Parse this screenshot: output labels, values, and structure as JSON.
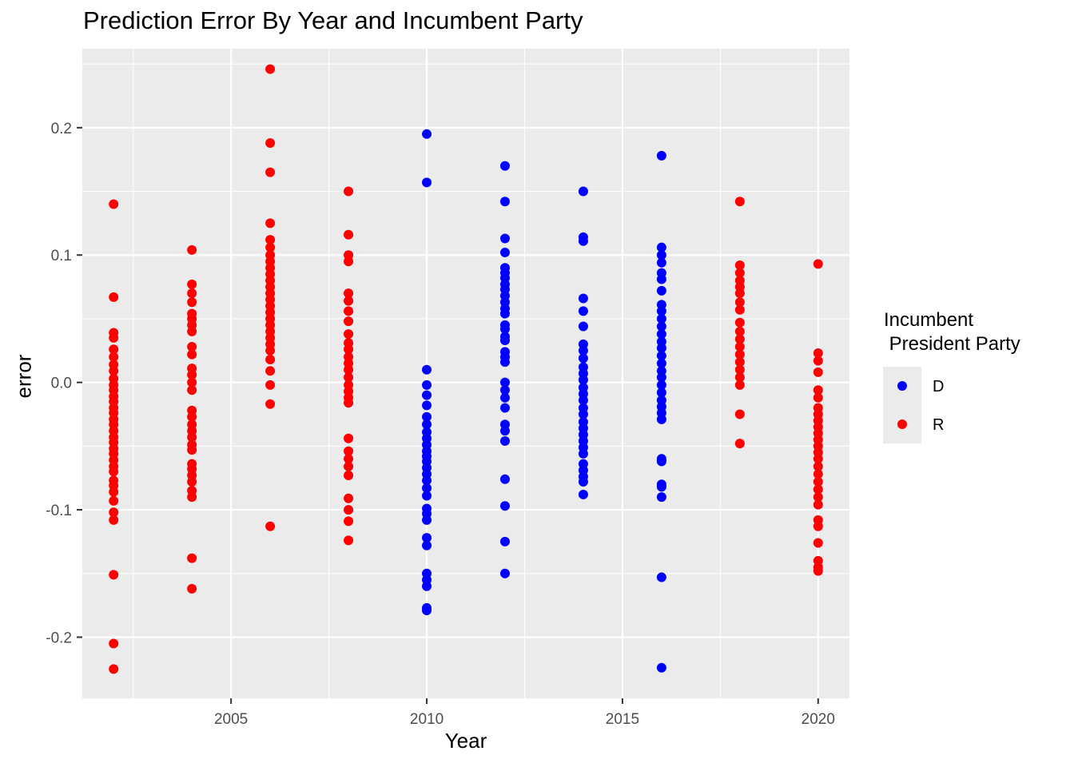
{
  "chart_data": {
    "type": "scatter",
    "title": "Prediction Error By Year and Incumbent Party",
    "xlabel": "Year",
    "ylabel": "error",
    "xlim": [
      2001.2,
      2020.8
    ],
    "ylim": [
      -0.248,
      0.262
    ],
    "x_ticks": [
      2005,
      2010,
      2015,
      2020
    ],
    "x_tick_labels": [
      "2005",
      "2010",
      "2015",
      "2020"
    ],
    "y_ticks": [
      -0.2,
      -0.1,
      0.0,
      0.1,
      0.2
    ],
    "y_tick_labels": [
      "-0.2",
      "-0.1",
      "0.0",
      "0.1",
      "0.2"
    ],
    "grid": true,
    "legend": {
      "title": "Incumbent\n President Party",
      "placement": "right",
      "entries": [
        {
          "label": "D",
          "color": "#0000ff"
        },
        {
          "label": "R",
          "color": "#ff0000"
        }
      ]
    },
    "series": [
      {
        "name": "R",
        "color": "#ff0000",
        "points": [
          [
            2002,
            0.14
          ],
          [
            2002,
            0.067
          ],
          [
            2002,
            0.039
          ],
          [
            2002,
            0.035
          ],
          [
            2002,
            0.026
          ],
          [
            2002,
            0.02
          ],
          [
            2002,
            0.014
          ],
          [
            2002,
            0.009
          ],
          [
            2002,
            0.003
          ],
          [
            2002,
            -0.002
          ],
          [
            2002,
            -0.006
          ],
          [
            2002,
            -0.011
          ],
          [
            2002,
            -0.015
          ],
          [
            2002,
            -0.02
          ],
          [
            2002,
            -0.024
          ],
          [
            2002,
            -0.029
          ],
          [
            2002,
            -0.033
          ],
          [
            2002,
            -0.038
          ],
          [
            2002,
            -0.043
          ],
          [
            2002,
            -0.047
          ],
          [
            2002,
            -0.052
          ],
          [
            2002,
            -0.056
          ],
          [
            2002,
            -0.061
          ],
          [
            2002,
            -0.066
          ],
          [
            2002,
            -0.07
          ],
          [
            2002,
            -0.077
          ],
          [
            2002,
            -0.081
          ],
          [
            2002,
            -0.086
          ],
          [
            2002,
            -0.093
          ],
          [
            2002,
            -0.102
          ],
          [
            2002,
            -0.108
          ],
          [
            2002,
            -0.151
          ],
          [
            2002,
            -0.205
          ],
          [
            2002,
            -0.225
          ],
          [
            2004,
            0.104
          ],
          [
            2004,
            0.077
          ],
          [
            2004,
            0.07
          ],
          [
            2004,
            0.063
          ],
          [
            2004,
            0.054
          ],
          [
            2004,
            0.05
          ],
          [
            2004,
            0.045
          ],
          [
            2004,
            0.04
          ],
          [
            2004,
            0.028
          ],
          [
            2004,
            0.022
          ],
          [
            2004,
            0.011
          ],
          [
            2004,
            0.006
          ],
          [
            2004,
            0.0
          ],
          [
            2004,
            -0.006
          ],
          [
            2004,
            -0.022
          ],
          [
            2004,
            -0.027
          ],
          [
            2004,
            -0.033
          ],
          [
            2004,
            -0.038
          ],
          [
            2004,
            -0.043
          ],
          [
            2004,
            -0.049
          ],
          [
            2004,
            -0.053
          ],
          [
            2004,
            -0.064
          ],
          [
            2004,
            -0.068
          ],
          [
            2004,
            -0.073
          ],
          [
            2004,
            -0.078
          ],
          [
            2004,
            -0.085
          ],
          [
            2004,
            -0.09
          ],
          [
            2004,
            -0.138
          ],
          [
            2004,
            -0.162
          ],
          [
            2006,
            0.246
          ],
          [
            2006,
            0.188
          ],
          [
            2006,
            0.165
          ],
          [
            2006,
            0.125
          ],
          [
            2006,
            0.112
          ],
          [
            2006,
            0.106
          ],
          [
            2006,
            0.1
          ],
          [
            2006,
            0.095
          ],
          [
            2006,
            0.09
          ],
          [
            2006,
            0.085
          ],
          [
            2006,
            0.08
          ],
          [
            2006,
            0.075
          ],
          [
            2006,
            0.07
          ],
          [
            2006,
            0.065
          ],
          [
            2006,
            0.06
          ],
          [
            2006,
            0.055
          ],
          [
            2006,
            0.05
          ],
          [
            2006,
            0.045
          ],
          [
            2006,
            0.04
          ],
          [
            2006,
            0.035
          ],
          [
            2006,
            0.03
          ],
          [
            2006,
            0.025
          ],
          [
            2006,
            0.018
          ],
          [
            2006,
            0.009
          ],
          [
            2006,
            -0.002
          ],
          [
            2006,
            -0.017
          ],
          [
            2006,
            -0.113
          ],
          [
            2008,
            0.15
          ],
          [
            2008,
            0.116
          ],
          [
            2008,
            0.1
          ],
          [
            2008,
            0.095
          ],
          [
            2008,
            0.07
          ],
          [
            2008,
            0.064
          ],
          [
            2008,
            0.056
          ],
          [
            2008,
            0.048
          ],
          [
            2008,
            0.038
          ],
          [
            2008,
            0.031
          ],
          [
            2008,
            0.026
          ],
          [
            2008,
            0.02
          ],
          [
            2008,
            0.015
          ],
          [
            2008,
            0.01
          ],
          [
            2008,
            0.004
          ],
          [
            2008,
            -0.002
          ],
          [
            2008,
            -0.007
          ],
          [
            2008,
            -0.012
          ],
          [
            2008,
            -0.016
          ],
          [
            2008,
            -0.044
          ],
          [
            2008,
            -0.054
          ],
          [
            2008,
            -0.06
          ],
          [
            2008,
            -0.066
          ],
          [
            2008,
            -0.073
          ],
          [
            2008,
            -0.091
          ],
          [
            2008,
            -0.1
          ],
          [
            2008,
            -0.109
          ],
          [
            2008,
            -0.124
          ],
          [
            2018,
            0.142
          ],
          [
            2018,
            0.092
          ],
          [
            2018,
            0.086
          ],
          [
            2018,
            0.08
          ],
          [
            2018,
            0.075
          ],
          [
            2018,
            0.07
          ],
          [
            2018,
            0.063
          ],
          [
            2018,
            0.057
          ],
          [
            2018,
            0.047
          ],
          [
            2018,
            0.04
          ],
          [
            2018,
            0.034
          ],
          [
            2018,
            0.028
          ],
          [
            2018,
            0.022
          ],
          [
            2018,
            0.016
          ],
          [
            2018,
            0.01
          ],
          [
            2018,
            0.004
          ],
          [
            2018,
            -0.002
          ],
          [
            2018,
            -0.025
          ],
          [
            2018,
            -0.048
          ],
          [
            2020,
            0.093
          ],
          [
            2020,
            0.023
          ],
          [
            2020,
            0.017
          ],
          [
            2020,
            0.008
          ],
          [
            2020,
            -0.006
          ],
          [
            2020,
            -0.012
          ],
          [
            2020,
            -0.02
          ],
          [
            2020,
            -0.025
          ],
          [
            2020,
            -0.03
          ],
          [
            2020,
            -0.035
          ],
          [
            2020,
            -0.04
          ],
          [
            2020,
            -0.045
          ],
          [
            2020,
            -0.05
          ],
          [
            2020,
            -0.055
          ],
          [
            2020,
            -0.06
          ],
          [
            2020,
            -0.066
          ],
          [
            2020,
            -0.072
          ],
          [
            2020,
            -0.078
          ],
          [
            2020,
            -0.084
          ],
          [
            2020,
            -0.09
          ],
          [
            2020,
            -0.096
          ],
          [
            2020,
            -0.108
          ],
          [
            2020,
            -0.113
          ],
          [
            2020,
            -0.126
          ],
          [
            2020,
            -0.14
          ],
          [
            2020,
            -0.145
          ],
          [
            2020,
            -0.148
          ]
        ]
      },
      {
        "name": "D",
        "color": "#0000ff",
        "points": [
          [
            2010,
            0.195
          ],
          [
            2010,
            0.157
          ],
          [
            2010,
            0.01
          ],
          [
            2010,
            -0.002
          ],
          [
            2010,
            -0.01
          ],
          [
            2010,
            -0.018
          ],
          [
            2010,
            -0.027
          ],
          [
            2010,
            -0.033
          ],
          [
            2010,
            -0.039
          ],
          [
            2010,
            -0.044
          ],
          [
            2010,
            -0.049
          ],
          [
            2010,
            -0.054
          ],
          [
            2010,
            -0.058
          ],
          [
            2010,
            -0.062
          ],
          [
            2010,
            -0.067
          ],
          [
            2010,
            -0.072
          ],
          [
            2010,
            -0.077
          ],
          [
            2010,
            -0.083
          ],
          [
            2010,
            -0.089
          ],
          [
            2010,
            -0.099
          ],
          [
            2010,
            -0.103
          ],
          [
            2010,
            -0.108
          ],
          [
            2010,
            -0.122
          ],
          [
            2010,
            -0.128
          ],
          [
            2010,
            -0.15
          ],
          [
            2010,
            -0.155
          ],
          [
            2010,
            -0.16
          ],
          [
            2010,
            -0.177
          ],
          [
            2010,
            -0.179
          ],
          [
            2012,
            0.17
          ],
          [
            2012,
            0.142
          ],
          [
            2012,
            0.113
          ],
          [
            2012,
            0.102
          ],
          [
            2012,
            0.09
          ],
          [
            2012,
            0.086
          ],
          [
            2012,
            0.082
          ],
          [
            2012,
            0.077
          ],
          [
            2012,
            0.073
          ],
          [
            2012,
            0.068
          ],
          [
            2012,
            0.063
          ],
          [
            2012,
            0.058
          ],
          [
            2012,
            0.054
          ],
          [
            2012,
            0.045
          ],
          [
            2012,
            0.042
          ],
          [
            2012,
            0.036
          ],
          [
            2012,
            0.033
          ],
          [
            2012,
            0.024
          ],
          [
            2012,
            0.02
          ],
          [
            2012,
            0.016
          ],
          [
            2012,
            0.0
          ],
          [
            2012,
            -0.006
          ],
          [
            2012,
            -0.012
          ],
          [
            2012,
            -0.02
          ],
          [
            2012,
            -0.033
          ],
          [
            2012,
            -0.038
          ],
          [
            2012,
            -0.046
          ],
          [
            2012,
            -0.076
          ],
          [
            2012,
            -0.097
          ],
          [
            2012,
            -0.125
          ],
          [
            2012,
            -0.15
          ],
          [
            2014,
            0.15
          ],
          [
            2014,
            0.114
          ],
          [
            2014,
            0.111
          ],
          [
            2014,
            0.066
          ],
          [
            2014,
            0.056
          ],
          [
            2014,
            0.044
          ],
          [
            2014,
            0.03
          ],
          [
            2014,
            0.025
          ],
          [
            2014,
            0.019
          ],
          [
            2014,
            0.012
          ],
          [
            2014,
            0.007
          ],
          [
            2014,
            0.002
          ],
          [
            2014,
            -0.004
          ],
          [
            2014,
            -0.009
          ],
          [
            2014,
            -0.014
          ],
          [
            2014,
            -0.02
          ],
          [
            2014,
            -0.025
          ],
          [
            2014,
            -0.031
          ],
          [
            2014,
            -0.036
          ],
          [
            2014,
            -0.041
          ],
          [
            2014,
            -0.046
          ],
          [
            2014,
            -0.051
          ],
          [
            2014,
            -0.056
          ],
          [
            2014,
            -0.064
          ],
          [
            2014,
            -0.069
          ],
          [
            2014,
            -0.074
          ],
          [
            2014,
            -0.078
          ],
          [
            2014,
            -0.088
          ],
          [
            2016,
            0.178
          ],
          [
            2016,
            0.106
          ],
          [
            2016,
            0.1
          ],
          [
            2016,
            0.094
          ],
          [
            2016,
            0.086
          ],
          [
            2016,
            0.081
          ],
          [
            2016,
            0.072
          ],
          [
            2016,
            0.061
          ],
          [
            2016,
            0.056
          ],
          [
            2016,
            0.05
          ],
          [
            2016,
            0.044
          ],
          [
            2016,
            0.038
          ],
          [
            2016,
            0.032
          ],
          [
            2016,
            0.027
          ],
          [
            2016,
            0.021
          ],
          [
            2016,
            0.015
          ],
          [
            2016,
            0.009
          ],
          [
            2016,
            0.004
          ],
          [
            2016,
            -0.002
          ],
          [
            2016,
            -0.008
          ],
          [
            2016,
            -0.014
          ],
          [
            2016,
            -0.019
          ],
          [
            2016,
            -0.024
          ],
          [
            2016,
            -0.029
          ],
          [
            2016,
            -0.06
          ],
          [
            2016,
            -0.062
          ],
          [
            2016,
            -0.08
          ],
          [
            2016,
            -0.082
          ],
          [
            2016,
            -0.09
          ],
          [
            2016,
            -0.153
          ],
          [
            2016,
            -0.224
          ]
        ]
      }
    ]
  }
}
